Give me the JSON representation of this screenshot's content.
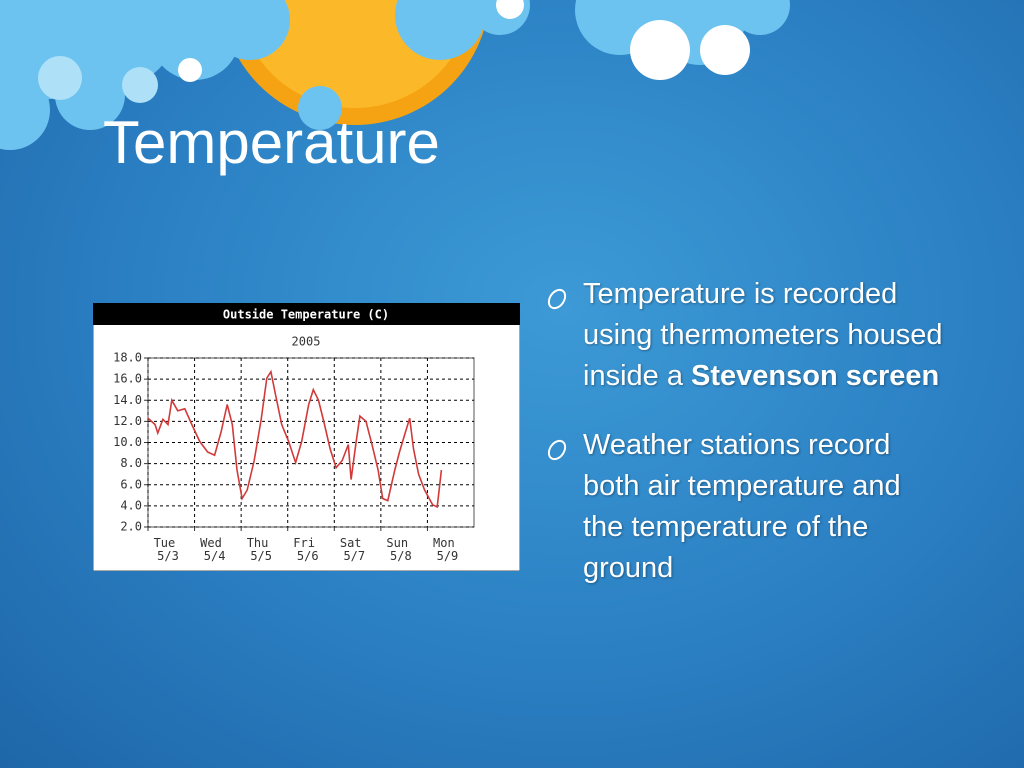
{
  "slide": {
    "title": "Temperature",
    "bullets": [
      {
        "text": "Temperature is recorded using thermometers housed inside a ",
        "bold": "Stevenson screen"
      },
      {
        "text": "Weather stations record both air temperature and the temperature of the ground"
      }
    ]
  },
  "chart_data": {
    "type": "line",
    "title": "Outside Temperature (C)",
    "subtitle": "2005",
    "x": [
      0,
      0.15,
      0.21,
      0.32,
      0.43,
      0.51,
      0.64,
      0.79,
      0.94,
      1.11,
      1.28,
      1.43,
      1.57,
      1.7,
      1.81,
      1.91,
      2.02,
      2.13,
      2.28,
      2.43,
      2.55,
      2.64,
      2.74,
      2.87,
      3.02,
      3.17,
      3.3,
      3.45,
      3.55,
      3.66,
      3.79,
      3.91,
      4.04,
      4.17,
      4.3,
      4.36,
      4.47,
      4.55,
      4.68,
      4.81,
      4.94,
      5.04,
      5.15,
      5.3,
      5.4,
      5.53,
      5.62,
      5.7,
      5.81,
      5.94,
      6.11,
      6.21,
      6.3
    ],
    "values": [
      12.3,
      11.7,
      10.9,
      12.2,
      11.7,
      14.0,
      13.0,
      13.2,
      11.7,
      10.1,
      9.1,
      8.8,
      11.0,
      13.6,
      11.7,
      7.4,
      4.7,
      5.5,
      8.3,
      12.2,
      16.1,
      16.7,
      14.5,
      11.7,
      10.1,
      8.1,
      10.1,
      13.6,
      15.0,
      14.0,
      11.7,
      9.4,
      7.6,
      8.3,
      9.8,
      6.5,
      10.1,
      12.5,
      12.0,
      9.8,
      7.4,
      4.7,
      4.5,
      7.4,
      9.1,
      11.0,
      12.3,
      9.4,
      7.0,
      5.5,
      4.1,
      3.9,
      7.4
    ],
    "color": "#d23a3a",
    "xlim": [
      0,
      7
    ],
    "xticks": [
      {
        "value": 0,
        "label": "Tue 5/3"
      },
      {
        "value": 1,
        "label": "Wed 5/4"
      },
      {
        "value": 2,
        "label": "Thu 5/5"
      },
      {
        "value": 3,
        "label": "Fri 5/6"
      },
      {
        "value": 4,
        "label": "Sat 5/7"
      },
      {
        "value": 5,
        "label": "Sun 5/8"
      },
      {
        "value": 6,
        "label": "Mon 5/9"
      }
    ],
    "ylim": [
      2,
      18
    ],
    "yticks": [
      {
        "value": 2,
        "label": "2.0"
      },
      {
        "value": 4,
        "label": "4.0"
      },
      {
        "value": 6,
        "label": "6.0"
      },
      {
        "value": 8,
        "label": "8.0"
      },
      {
        "value": 10,
        "label": "10.0"
      },
      {
        "value": 12,
        "label": "12.0"
      },
      {
        "value": 14,
        "label": "14.0"
      },
      {
        "value": 16,
        "label": "16.0"
      },
      {
        "value": 18,
        "label": "18.0"
      }
    ],
    "grid": true
  }
}
